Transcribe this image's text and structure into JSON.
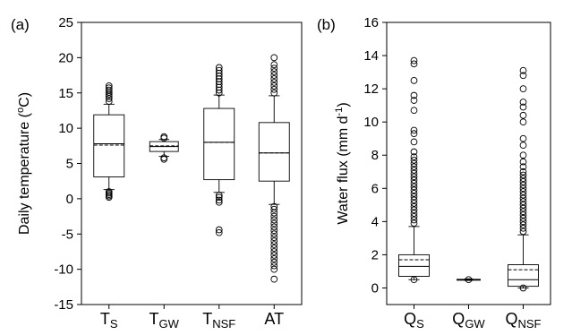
{
  "chart_data": [
    {
      "type": "box",
      "panel_label": "(a)",
      "ylabel_main": "Daily temperature (",
      "ylabel_sup": "o",
      "ylabel_unit": "C)",
      "ylim": [
        -15,
        25
      ],
      "yticks": [
        -15,
        -10,
        -5,
        0,
        5,
        10,
        15,
        20,
        25
      ],
      "categories": [
        {
          "main": "T",
          "sub": "S"
        },
        {
          "main": "T",
          "sub": "GW"
        },
        {
          "main": "T",
          "sub": "NSF"
        },
        {
          "main": "AT",
          "sub": ""
        }
      ],
      "boxes": [
        {
          "whisker_low": 1.3,
          "q1": 3.1,
          "median": 7.8,
          "mean": 7.6,
          "q3": 11.9,
          "whisker_high": 13.4,
          "outliers": [
            0.2,
            0.4,
            0.6,
            0.8,
            1.0,
            13.8,
            14.2,
            14.5,
            14.8,
            15.1,
            15.4,
            15.7,
            16.0
          ]
        },
        {
          "whisker_low": 6.0,
          "q1": 6.7,
          "median": 7.4,
          "mean": 7.5,
          "q3": 8.1,
          "whisker_high": 8.4,
          "outliers": [
            5.6,
            5.8,
            8.6,
            8.8
          ]
        },
        {
          "whisker_low": 0.9,
          "q1": 2.7,
          "median": 8.0,
          "mean": 8.0,
          "q3": 12.8,
          "whisker_high": 14.7,
          "outliers": [
            -4.8,
            -4.4,
            -0.5,
            -0.2,
            0.2,
            0.5,
            15.0,
            15.4,
            15.8,
            16.2,
            16.6,
            17.0,
            17.4,
            17.8,
            18.2,
            18.6
          ]
        },
        {
          "whisker_low": -0.8,
          "q1": 2.5,
          "median": 6.5,
          "mean": 6.5,
          "q3": 10.8,
          "whisker_high": 14.6,
          "outliers": [
            -11.4,
            -10.0,
            -9.5,
            -9.0,
            -8.5,
            -8.0,
            -7.5,
            -7.0,
            -6.5,
            -6.0,
            -5.5,
            -5.0,
            -4.5,
            -4.0,
            -3.5,
            -3.0,
            -2.5,
            -2.0,
            -1.5,
            -1.1,
            15.0,
            15.5,
            16.0,
            16.5,
            17.0,
            17.5,
            18.0,
            18.5,
            19.0,
            20.0
          ]
        }
      ]
    },
    {
      "type": "box",
      "panel_label": "(b)",
      "ylabel_main": "Water flux (mm d",
      "ylabel_sup": "-1",
      "ylabel_unit": ")",
      "ylim": [
        -1,
        16
      ],
      "yticks": [
        0,
        2,
        4,
        6,
        8,
        10,
        12,
        14,
        16
      ],
      "categories": [
        {
          "main": "Q",
          "sub": "S"
        },
        {
          "main": "Q",
          "sub": "GW"
        },
        {
          "main": "Q",
          "sub": "NSF"
        }
      ],
      "boxes": [
        {
          "whisker_low": 0.5,
          "q1": 0.7,
          "median": 1.3,
          "mean": 1.7,
          "q3": 2.0,
          "whisker_high": 3.7,
          "outliers": [
            0.5,
            3.9,
            4.1,
            4.3,
            4.5,
            4.7,
            4.9,
            5.1,
            5.3,
            5.5,
            5.7,
            5.9,
            6.1,
            6.3,
            6.5,
            6.7,
            6.9,
            7.1,
            7.3,
            7.5,
            7.7,
            7.9,
            8.2,
            8.8,
            9.3,
            9.5,
            10.7,
            11.3,
            11.6,
            12.5,
            13.5,
            13.7
          ]
        },
        {
          "whisker_low": 0.45,
          "q1": 0.48,
          "median": 0.5,
          "mean": 0.5,
          "q3": 0.52,
          "whisker_high": 0.55,
          "outliers": [
            0.5
          ]
        },
        {
          "whisker_low": 0.0,
          "q1": 0.1,
          "median": 0.5,
          "mean": 1.1,
          "q3": 1.4,
          "whisker_high": 3.2,
          "outliers": [
            0.0,
            3.4,
            3.6,
            3.8,
            4.0,
            4.2,
            4.4,
            4.6,
            4.8,
            5.0,
            5.2,
            5.4,
            5.6,
            5.8,
            6.0,
            6.2,
            6.4,
            6.6,
            6.8,
            7.0,
            7.3,
            7.6,
            8.0,
            8.6,
            9.0,
            10.0,
            10.4,
            10.9,
            11.2,
            12.0,
            12.8,
            13.1
          ]
        }
      ]
    }
  ]
}
